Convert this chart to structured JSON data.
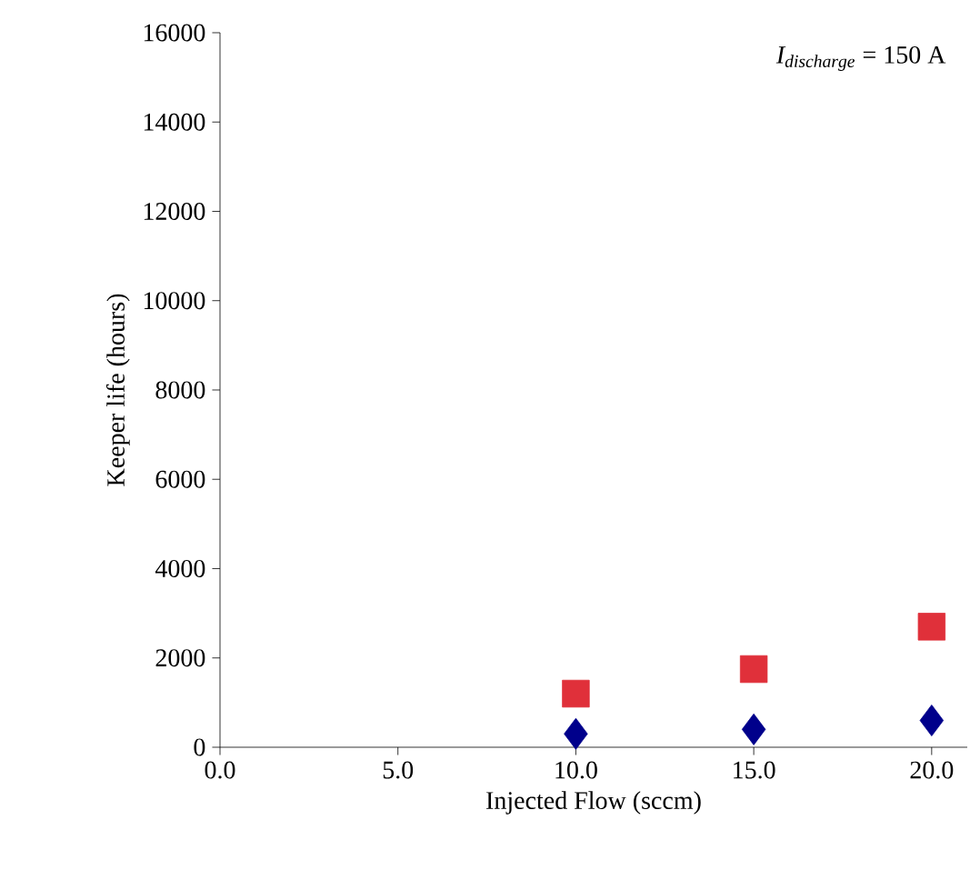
{
  "chart_data": {
    "type": "scatter",
    "xlabel": "Injected Flow (sccm)",
    "ylabel": "Keeper life (hours)",
    "annotations": [
      "I_{discharge}\\text{ = 150 A}"
    ],
    "x": [
      10,
      15,
      20
    ],
    "series": [
      {
        "color": "#e0303a",
        "marker": "square",
        "values": [
          1200,
          1750,
          2700
        ]
      },
      {
        "color": "#00008b",
        "marker": "diamond",
        "values": [
          300,
          400,
          600
        ]
      }
    ],
    "xlim": [
      0,
      21
    ],
    "xticks": [
      {
        "value": 0,
        "label": "0.0"
      },
      {
        "value": 5,
        "label": "5.0"
      },
      {
        "value": 10,
        "label": "10.0"
      },
      {
        "value": 15,
        "label": "15.0"
      },
      {
        "value": 20,
        "label": "20.0"
      }
    ],
    "ylim": [
      0,
      16000
    ],
    "yticks": [
      0,
      2000,
      4000,
      6000,
      8000,
      10000,
      12000,
      14000,
      16000
    ],
    "grid": false,
    "legend": false
  }
}
